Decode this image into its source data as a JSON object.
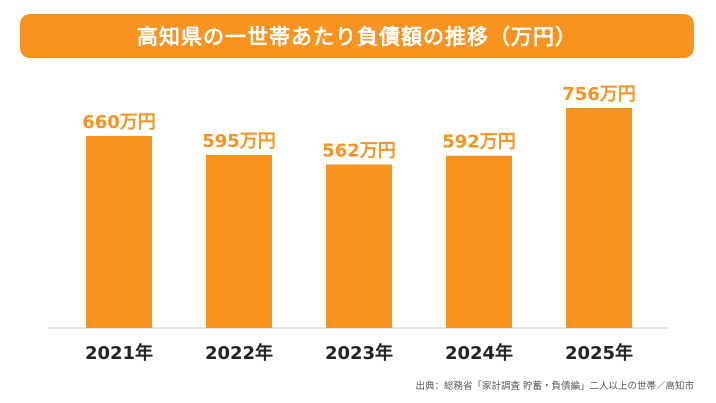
{
  "colors": {
    "accent": "#F7931E",
    "banner": "#F7931E",
    "label_text": "#F7931E",
    "axis_text": "#222222",
    "baseline": "#cccccc"
  },
  "chart_data": {
    "type": "bar",
    "title": "高知県の一世帯あたり負債額の推移（万円）",
    "categories": [
      "2021年",
      "2022年",
      "2023年",
      "2024年",
      "2025年"
    ],
    "values": [
      660,
      595,
      562,
      592,
      756
    ],
    "data_labels": [
      "660万円",
      "595万円",
      "562万円",
      "592万円",
      "756万円"
    ],
    "unit": "万円",
    "ylim": [
      0,
      800
    ],
    "grid": false,
    "legend": "none",
    "source": "出典：総務省「家計調査 貯蓄・負債編」二人以上の世帯／高知市"
  }
}
